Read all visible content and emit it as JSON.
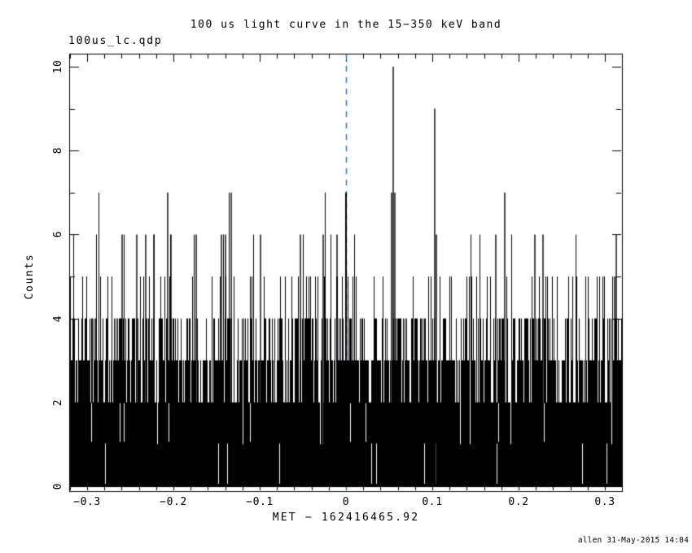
{
  "header": {
    "file_label": "100us_lc.qdp"
  },
  "footer": {
    "credit": "allen 31-May-2015 14:04"
  },
  "chart_data": {
    "type": "bar",
    "subtype": "high-resolution binned light curve (histogram drawn as vertical count columns)",
    "title": "100 us light curve in the 15−350 keV band",
    "xlabel": "MET − 162416465.92",
    "ylabel": "Counts",
    "xlim": [
      -0.321,
      0.32
    ],
    "ylim": [
      0,
      10
    ],
    "x_major_step": 0.1,
    "x_minor_step": 0.02,
    "y_major_step": 2,
    "y_minor_step": 1,
    "grid": false,
    "legend": "none",
    "xtick_values": [
      -0.3,
      -0.2,
      -0.1,
      0,
      0.1,
      0.2,
      0.3
    ],
    "xtick_labels": [
      "−0.3",
      "−0.2",
      "−0.1",
      "0",
      "0.1",
      "0.2",
      "0.3"
    ],
    "ytick_values": [
      0,
      2,
      4,
      6,
      8,
      10
    ],
    "ytick_labels": [
      "0",
      "2",
      "4",
      "6",
      "8",
      "10"
    ],
    "series_color": "#000000",
    "marker_line": {
      "x": 0,
      "style": "dashed",
      "color": "#2178dc",
      "dash": [
        7,
        7
      ]
    },
    "noise": {
      "seed": 1431,
      "comment_model": "per-pixel-column maximum of ~9 Poisson(1.5) 100us bins; noise floor solid to 2-3 counts",
      "levels": [
        1,
        2,
        3,
        4,
        5,
        6,
        7
      ],
      "probs": [
        0.015,
        0.16,
        0.375,
        0.31,
        0.11,
        0.025,
        0.005
      ],
      "gap_prob_band01": 0.022,
      "gap_prob_band12": 0.012
    },
    "peaks": [
      {
        "x": -0.2594,
        "counts": 6
      },
      {
        "x": -0.2425,
        "counts": 6
      },
      {
        "x": -0.2321,
        "counts": 6
      },
      {
        "x": -0.2226,
        "counts": 6
      },
      {
        "x": -0.2066,
        "counts": 7
      },
      {
        "x": -0.2028,
        "counts": 6
      },
      {
        "x": -0.1736,
        "counts": 6
      },
      {
        "x": -0.1443,
        "counts": 6
      },
      {
        "x": -0.1396,
        "counts": 6
      },
      {
        "x": -0.133,
        "counts": 7
      },
      {
        "x": -0.0991,
        "counts": 6
      },
      {
        "x": -0.0528,
        "counts": 6
      },
      {
        "x": -0.0264,
        "counts": 6
      },
      {
        "x": -0.0104,
        "counts": 6
      },
      {
        "x": 0.0,
        "counts": 7
      },
      {
        "x": 0.0528,
        "counts": 7
      },
      {
        "x": 0.0547,
        "counts": 10
      },
      {
        "x": 0.0566,
        "counts": 7
      },
      {
        "x": 0.1028,
        "counts": 9
      },
      {
        "x": 0.1047,
        "counts": 6
      },
      {
        "x": 0.1736,
        "counts": 6
      },
      {
        "x": 0.184,
        "counts": 7
      },
      {
        "x": 0.2189,
        "counts": 6
      },
      {
        "x": 0.2283,
        "counts": 6
      },
      {
        "x": 0.3113,
        "counts": 5
      },
      {
        "x": 0.3132,
        "counts": 6
      }
    ]
  }
}
